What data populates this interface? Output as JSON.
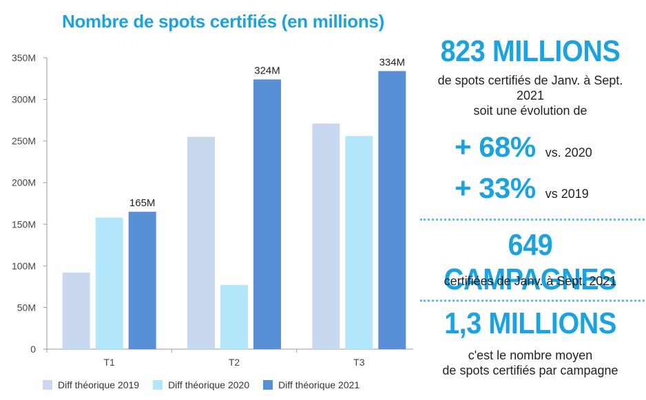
{
  "chart_data": {
    "type": "bar",
    "title": "Nombre de spots certifiés (en millions)",
    "categories": [
      "T1",
      "T2",
      "T3"
    ],
    "series": [
      {
        "name": "Diff théorique 2019",
        "values": [
          92,
          255,
          271
        ],
        "color": "#c8d8ef"
      },
      {
        "name": "Diff théorique 2020",
        "values": [
          158,
          77,
          256
        ],
        "color": "#b2e7fb"
      },
      {
        "name": "Diff théorique 2021",
        "values": [
          165,
          324,
          334
        ],
        "color": "#588fd7"
      }
    ],
    "data_labels": [
      "165M",
      "324M",
      "334M"
    ],
    "y_ticks": [
      "0",
      "50M",
      "100M",
      "150M",
      "200M",
      "250M",
      "300M",
      "350M"
    ],
    "ylim": [
      0,
      350
    ],
    "ytick_step": 50,
    "xlabel": "",
    "ylabel": "",
    "grid": false,
    "legend_position": "bottom"
  },
  "panel": {
    "stat1_value": "823 MILLIONS",
    "stat1_line1": "de spots certifiés de Janv. à Sept.",
    "stat1_line2": "2021",
    "stat1_line3": "soit une évolution de",
    "pct1_value": "+ 68%",
    "pct1_label": "vs. 2020",
    "pct2_value": "+ 33%",
    "pct2_label": "vs 2019",
    "stat2_value": "649 CAMPAGNES",
    "stat2_line1": "certifiées de Janv. à Sept.  2021",
    "stat3_value": "1,3 MILLIONS",
    "stat3_line1": "c'est le nombre moyen",
    "stat3_line2": "de spots certifiés par campagne"
  },
  "colors": {
    "accent": "#1aa3e0",
    "axis": "#888888",
    "text": "#222222"
  }
}
